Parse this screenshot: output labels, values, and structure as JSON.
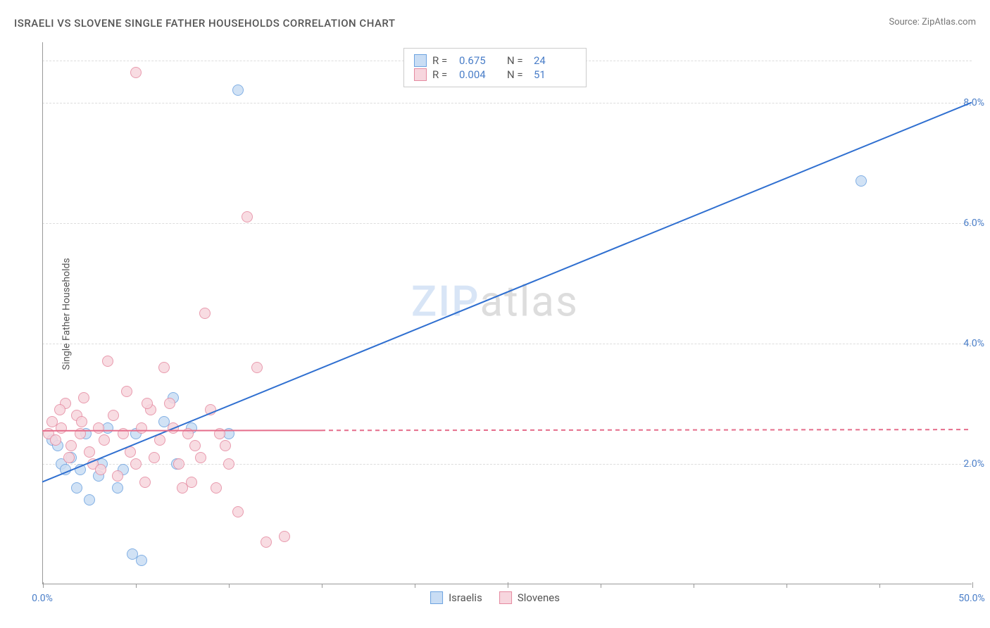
{
  "title": "ISRAELI VS SLOVENE SINGLE FATHER HOUSEHOLDS CORRELATION CHART",
  "source": "Source: ZipAtlas.com",
  "ylabel": "Single Father Households",
  "watermark_a": "ZIP",
  "watermark_b": "atlas",
  "chart": {
    "type": "scatter",
    "xlim": [
      0,
      50
    ],
    "ylim": [
      0,
      9
    ],
    "x_ticks": [
      0,
      25,
      50
    ],
    "x_tick_labels": [
      "0.0%",
      "",
      "50.0%"
    ],
    "x_minor_ticks": [
      5,
      10,
      15,
      20,
      30,
      35,
      40,
      45
    ],
    "y_ticks": [
      2,
      4,
      6,
      8
    ],
    "y_tick_labels": [
      "2.0%",
      "4.0%",
      "6.0%",
      "8.0%"
    ],
    "grid_color": "#dddddd",
    "axis_color": "#999999",
    "background_color": "#ffffff",
    "tick_label_color": "#4a7ec8",
    "point_radius": 8,
    "series": [
      {
        "name": "Israelis",
        "fill": "#c9ddf4",
        "stroke": "#6da3e0",
        "r_value": "0.675",
        "n_value": "24",
        "trend": {
          "x1": 0,
          "y1": 1.7,
          "x2": 50,
          "y2": 8.0,
          "solid_until_x": 50,
          "line_color": "#2f6fd0",
          "line_width": 2
        },
        "points": [
          [
            0.5,
            2.4
          ],
          [
            0.8,
            2.3
          ],
          [
            1.0,
            2.0
          ],
          [
            1.2,
            1.9
          ],
          [
            1.5,
            2.1
          ],
          [
            1.8,
            1.6
          ],
          [
            2.0,
            1.9
          ],
          [
            2.3,
            2.5
          ],
          [
            2.5,
            1.4
          ],
          [
            3.0,
            1.8
          ],
          [
            3.2,
            2.0
          ],
          [
            3.5,
            2.6
          ],
          [
            4.0,
            1.6
          ],
          [
            4.3,
            1.9
          ],
          [
            4.8,
            0.5
          ],
          [
            5.3,
            0.4
          ],
          [
            5.0,
            2.5
          ],
          [
            6.5,
            2.7
          ],
          [
            7.0,
            3.1
          ],
          [
            7.2,
            2.0
          ],
          [
            8.0,
            2.6
          ],
          [
            10.0,
            2.5
          ],
          [
            10.5,
            8.2
          ],
          [
            44.0,
            6.7
          ]
        ]
      },
      {
        "name": "Slovenes",
        "fill": "#f7d6de",
        "stroke": "#e58aa0",
        "r_value": "0.004",
        "n_value": "51",
        "trend": {
          "x1": 0,
          "y1": 2.55,
          "x2": 50,
          "y2": 2.57,
          "solid_until_x": 15,
          "line_color": "#e56d8b",
          "line_width": 2
        },
        "points": [
          [
            0.3,
            2.5
          ],
          [
            0.5,
            2.7
          ],
          [
            0.7,
            2.4
          ],
          [
            1.0,
            2.6
          ],
          [
            1.2,
            3.0
          ],
          [
            1.5,
            2.3
          ],
          [
            1.8,
            2.8
          ],
          [
            2.0,
            2.5
          ],
          [
            2.2,
            3.1
          ],
          [
            2.5,
            2.2
          ],
          [
            2.7,
            2.0
          ],
          [
            3.0,
            2.6
          ],
          [
            3.3,
            2.4
          ],
          [
            3.5,
            3.7
          ],
          [
            3.8,
            2.8
          ],
          [
            4.0,
            1.8
          ],
          [
            4.3,
            2.5
          ],
          [
            4.5,
            3.2
          ],
          [
            5.0,
            8.5
          ],
          [
            5.0,
            2.0
          ],
          [
            5.3,
            2.6
          ],
          [
            5.5,
            1.7
          ],
          [
            5.8,
            2.9
          ],
          [
            6.0,
            2.1
          ],
          [
            6.3,
            2.4
          ],
          [
            6.5,
            3.6
          ],
          [
            7.0,
            2.6
          ],
          [
            7.3,
            2.0
          ],
          [
            7.5,
            1.6
          ],
          [
            7.8,
            2.5
          ],
          [
            8.0,
            1.7
          ],
          [
            8.5,
            2.1
          ],
          [
            8.7,
            4.5
          ],
          [
            9.0,
            2.9
          ],
          [
            9.3,
            1.6
          ],
          [
            9.5,
            2.5
          ],
          [
            10.0,
            2.0
          ],
          [
            10.5,
            1.2
          ],
          [
            11.0,
            6.1
          ],
          [
            11.5,
            3.6
          ],
          [
            12.0,
            0.7
          ],
          [
            13.0,
            0.8
          ],
          [
            8.2,
            2.3
          ],
          [
            6.8,
            3.0
          ],
          [
            4.7,
            2.2
          ],
          [
            3.1,
            1.9
          ],
          [
            1.4,
            2.1
          ],
          [
            0.9,
            2.9
          ],
          [
            2.1,
            2.7
          ],
          [
            5.6,
            3.0
          ],
          [
            9.8,
            2.3
          ]
        ]
      }
    ],
    "legend_bottom": [
      {
        "label": "Israelis",
        "fill": "#c9ddf4",
        "stroke": "#6da3e0"
      },
      {
        "label": "Slovenes",
        "fill": "#f7d6de",
        "stroke": "#e58aa0"
      }
    ]
  }
}
